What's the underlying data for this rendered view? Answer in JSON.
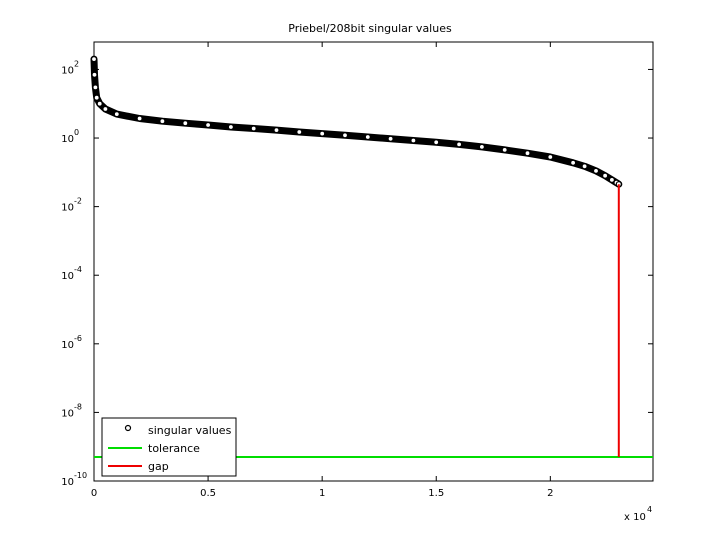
{
  "chart_data": {
    "type": "line",
    "title": "Priebel/208bit singular values",
    "xlabel": "",
    "ylabel": "",
    "x_scale_note": "x 10",
    "x_scale_exponent": "4",
    "xlim": [
      0,
      24500
    ],
    "ylim_log10": [
      -10,
      2.8
    ],
    "yscale": "log",
    "grid": false,
    "legend_position": "bottom-left",
    "x_ticks": [
      {
        "value": 0,
        "label": "0"
      },
      {
        "value": 5000,
        "label": "0.5"
      },
      {
        "value": 10000,
        "label": "1"
      },
      {
        "value": 15000,
        "label": "1.5"
      },
      {
        "value": 20000,
        "label": "2"
      }
    ],
    "y_ticks": [
      {
        "exp": 2,
        "base": "10",
        "sup": "2"
      },
      {
        "exp": 0,
        "base": "10",
        "sup": "0"
      },
      {
        "exp": -2,
        "base": "10",
        "sup": "-2"
      },
      {
        "exp": -4,
        "base": "10",
        "sup": "-4"
      },
      {
        "exp": -6,
        "base": "10",
        "sup": "-6"
      },
      {
        "exp": -8,
        "base": "10",
        "sup": "-8"
      },
      {
        "exp": -10,
        "base": "10",
        "sup": "-10"
      }
    ],
    "series": [
      {
        "name": "singular values",
        "style": "markers",
        "color": "#000000",
        "x": [
          1,
          20,
          60,
          120,
          250,
          500,
          1000,
          2000,
          3000,
          4000,
          5000,
          6000,
          7000,
          8000,
          9000,
          10000,
          11000,
          12000,
          13000,
          14000,
          15000,
          16000,
          17000,
          18000,
          19000,
          20000,
          21000,
          21500,
          22000,
          22400,
          22700,
          22900,
          23000
        ],
        "y": [
          200,
          70,
          30,
          15,
          10,
          7,
          5,
          3.7,
          3.1,
          2.7,
          2.4,
          2.1,
          1.9,
          1.7,
          1.5,
          1.35,
          1.2,
          1.07,
          0.95,
          0.85,
          0.75,
          0.65,
          0.55,
          0.45,
          0.36,
          0.28,
          0.19,
          0.15,
          0.11,
          0.08,
          0.06,
          0.05,
          0.045
        ]
      },
      {
        "name": "tolerance",
        "style": "line",
        "color": "#00dd00",
        "x": [
          0,
          24500
        ],
        "y": [
          5e-10,
          5e-10
        ]
      },
      {
        "name": "gap",
        "style": "line",
        "color": "#ee0000",
        "x": [
          23000,
          23000
        ],
        "y": [
          0.045,
          5e-10
        ]
      }
    ]
  }
}
